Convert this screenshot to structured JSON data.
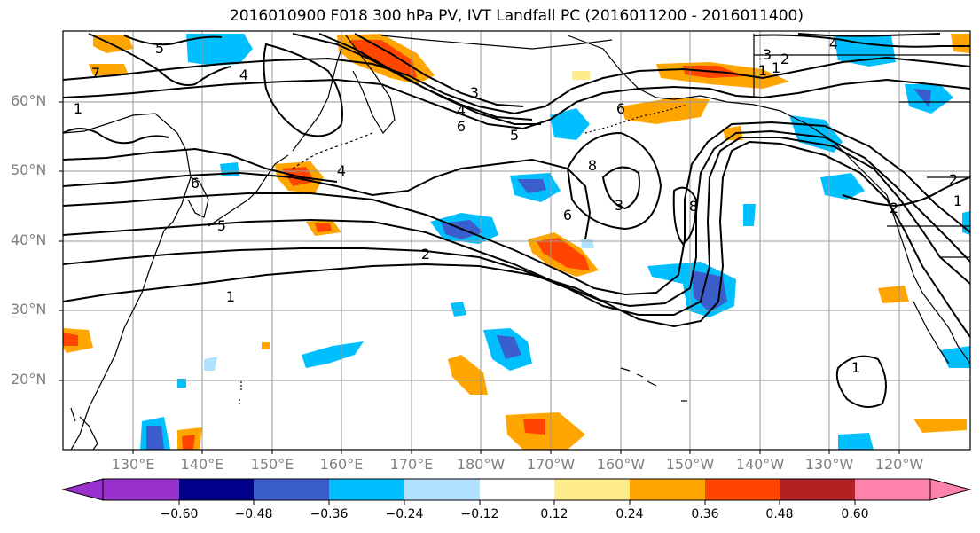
{
  "title": "2016010900 F018 300 hPa PV, IVT Landfall PC (2016011200 - 2016011400)",
  "lat_labels": [
    "60°N",
    "50°N",
    "40°N",
    "30°N",
    "20°N"
  ],
  "lon_labels": [
    "130°E",
    "140°E",
    "150°E",
    "160°E",
    "170°E",
    "180°W",
    "170°W",
    "160°W",
    "150°W",
    "140°W",
    "130°W",
    "120°W"
  ],
  "colorbar": {
    "ticks": [
      "−0.60",
      "−0.48",
      "−0.36",
      "−0.24",
      "−0.12",
      "0.12",
      "0.24",
      "0.36",
      "0.48",
      "0.60"
    ],
    "colors": [
      "#9932cc",
      "#00008b",
      "#3a5fcd",
      "#00bfff",
      "#b0e2ff",
      "#ffffff",
      "#ffec8b",
      "#ffa500",
      "#ff4500",
      "#b22222",
      "#ff82ab"
    ]
  },
  "contour_labels": [
    "5",
    "4",
    "6",
    "5",
    "4",
    "1",
    "6",
    "5",
    "4",
    "3",
    "2",
    "1",
    "1",
    "6",
    "6",
    "8",
    "8",
    "3",
    "4",
    "2",
    "3",
    "2",
    "1",
    "2",
    "1",
    "1",
    "7"
  ],
  "colors": {
    "contour": "#000000",
    "grid": "#999999",
    "coast": "#000000"
  }
}
